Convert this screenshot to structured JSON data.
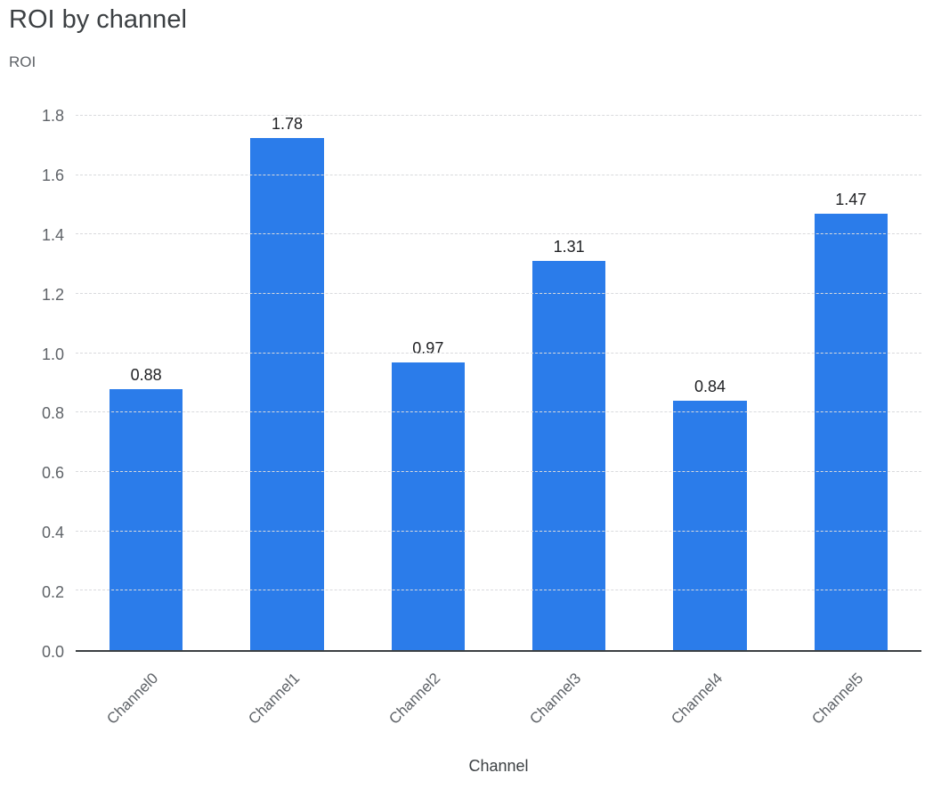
{
  "chart_data": {
    "type": "bar",
    "title": "ROI by channel",
    "categories": [
      "Channel0",
      "Channel1",
      "Channel2",
      "Channel3",
      "Channel4",
      "Channel5"
    ],
    "values": [
      0.88,
      1.78,
      0.97,
      1.31,
      0.84,
      1.47
    ],
    "value_labels": [
      "0.88",
      "1.78",
      "0.97",
      "1.31",
      "0.84",
      "1.47"
    ],
    "xlabel": "Channel",
    "ylabel": "ROI",
    "ylim": [
      0,
      1.8
    ],
    "ytick_labels": [
      "0.0",
      "0.2",
      "0.4",
      "0.6",
      "0.8",
      "1.0",
      "1.2",
      "1.4",
      "1.6",
      "1.8"
    ],
    "grid": "horizontal-dashed",
    "legend": "none",
    "colors": {
      "bar": "#2b7cea",
      "title": "#3c4043",
      "axis_label": "#5f6368",
      "tick_label": "#5f6368",
      "value_label": "#202124",
      "gridline": "#d9dadd",
      "axis_line": "#3c4043"
    }
  }
}
